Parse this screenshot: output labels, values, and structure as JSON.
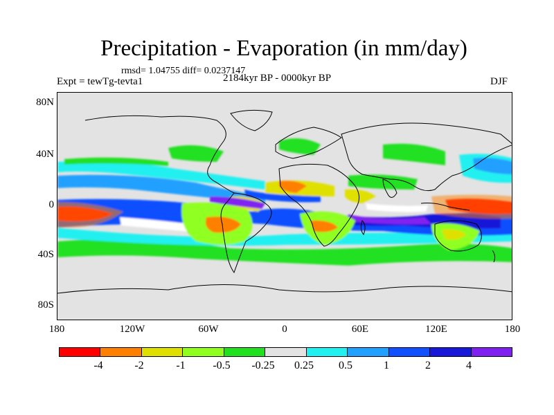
{
  "title": "Precipitation - Evaporation (in mm/day)",
  "stats": "rmsd= 1.04755 diff= 0.0237147",
  "experiment": "Expt = tewTg-tevta1",
  "period": "2184kyr BP - 0000kyr BP",
  "season": "DJF",
  "y_axis": {
    "labels": [
      "80N",
      "40N",
      "0",
      "40S",
      "80S"
    ]
  },
  "x_axis": {
    "labels": [
      "180",
      "120W",
      "60W",
      "0",
      "60E",
      "120E",
      "180"
    ]
  },
  "colorbar": {
    "colors": [
      "#ff0000",
      "#ff7f00",
      "#e0e000",
      "#90ff20",
      "#20e020",
      "#e3e3e3",
      "#20f0f0",
      "#20a0ff",
      "#1050ff",
      "#1818d8",
      "#8020f0"
    ],
    "labels": [
      "-4",
      "-2",
      "-1",
      "-0.5",
      "-0.25",
      "0.25",
      "0.5",
      "1",
      "2",
      "4"
    ]
  }
}
